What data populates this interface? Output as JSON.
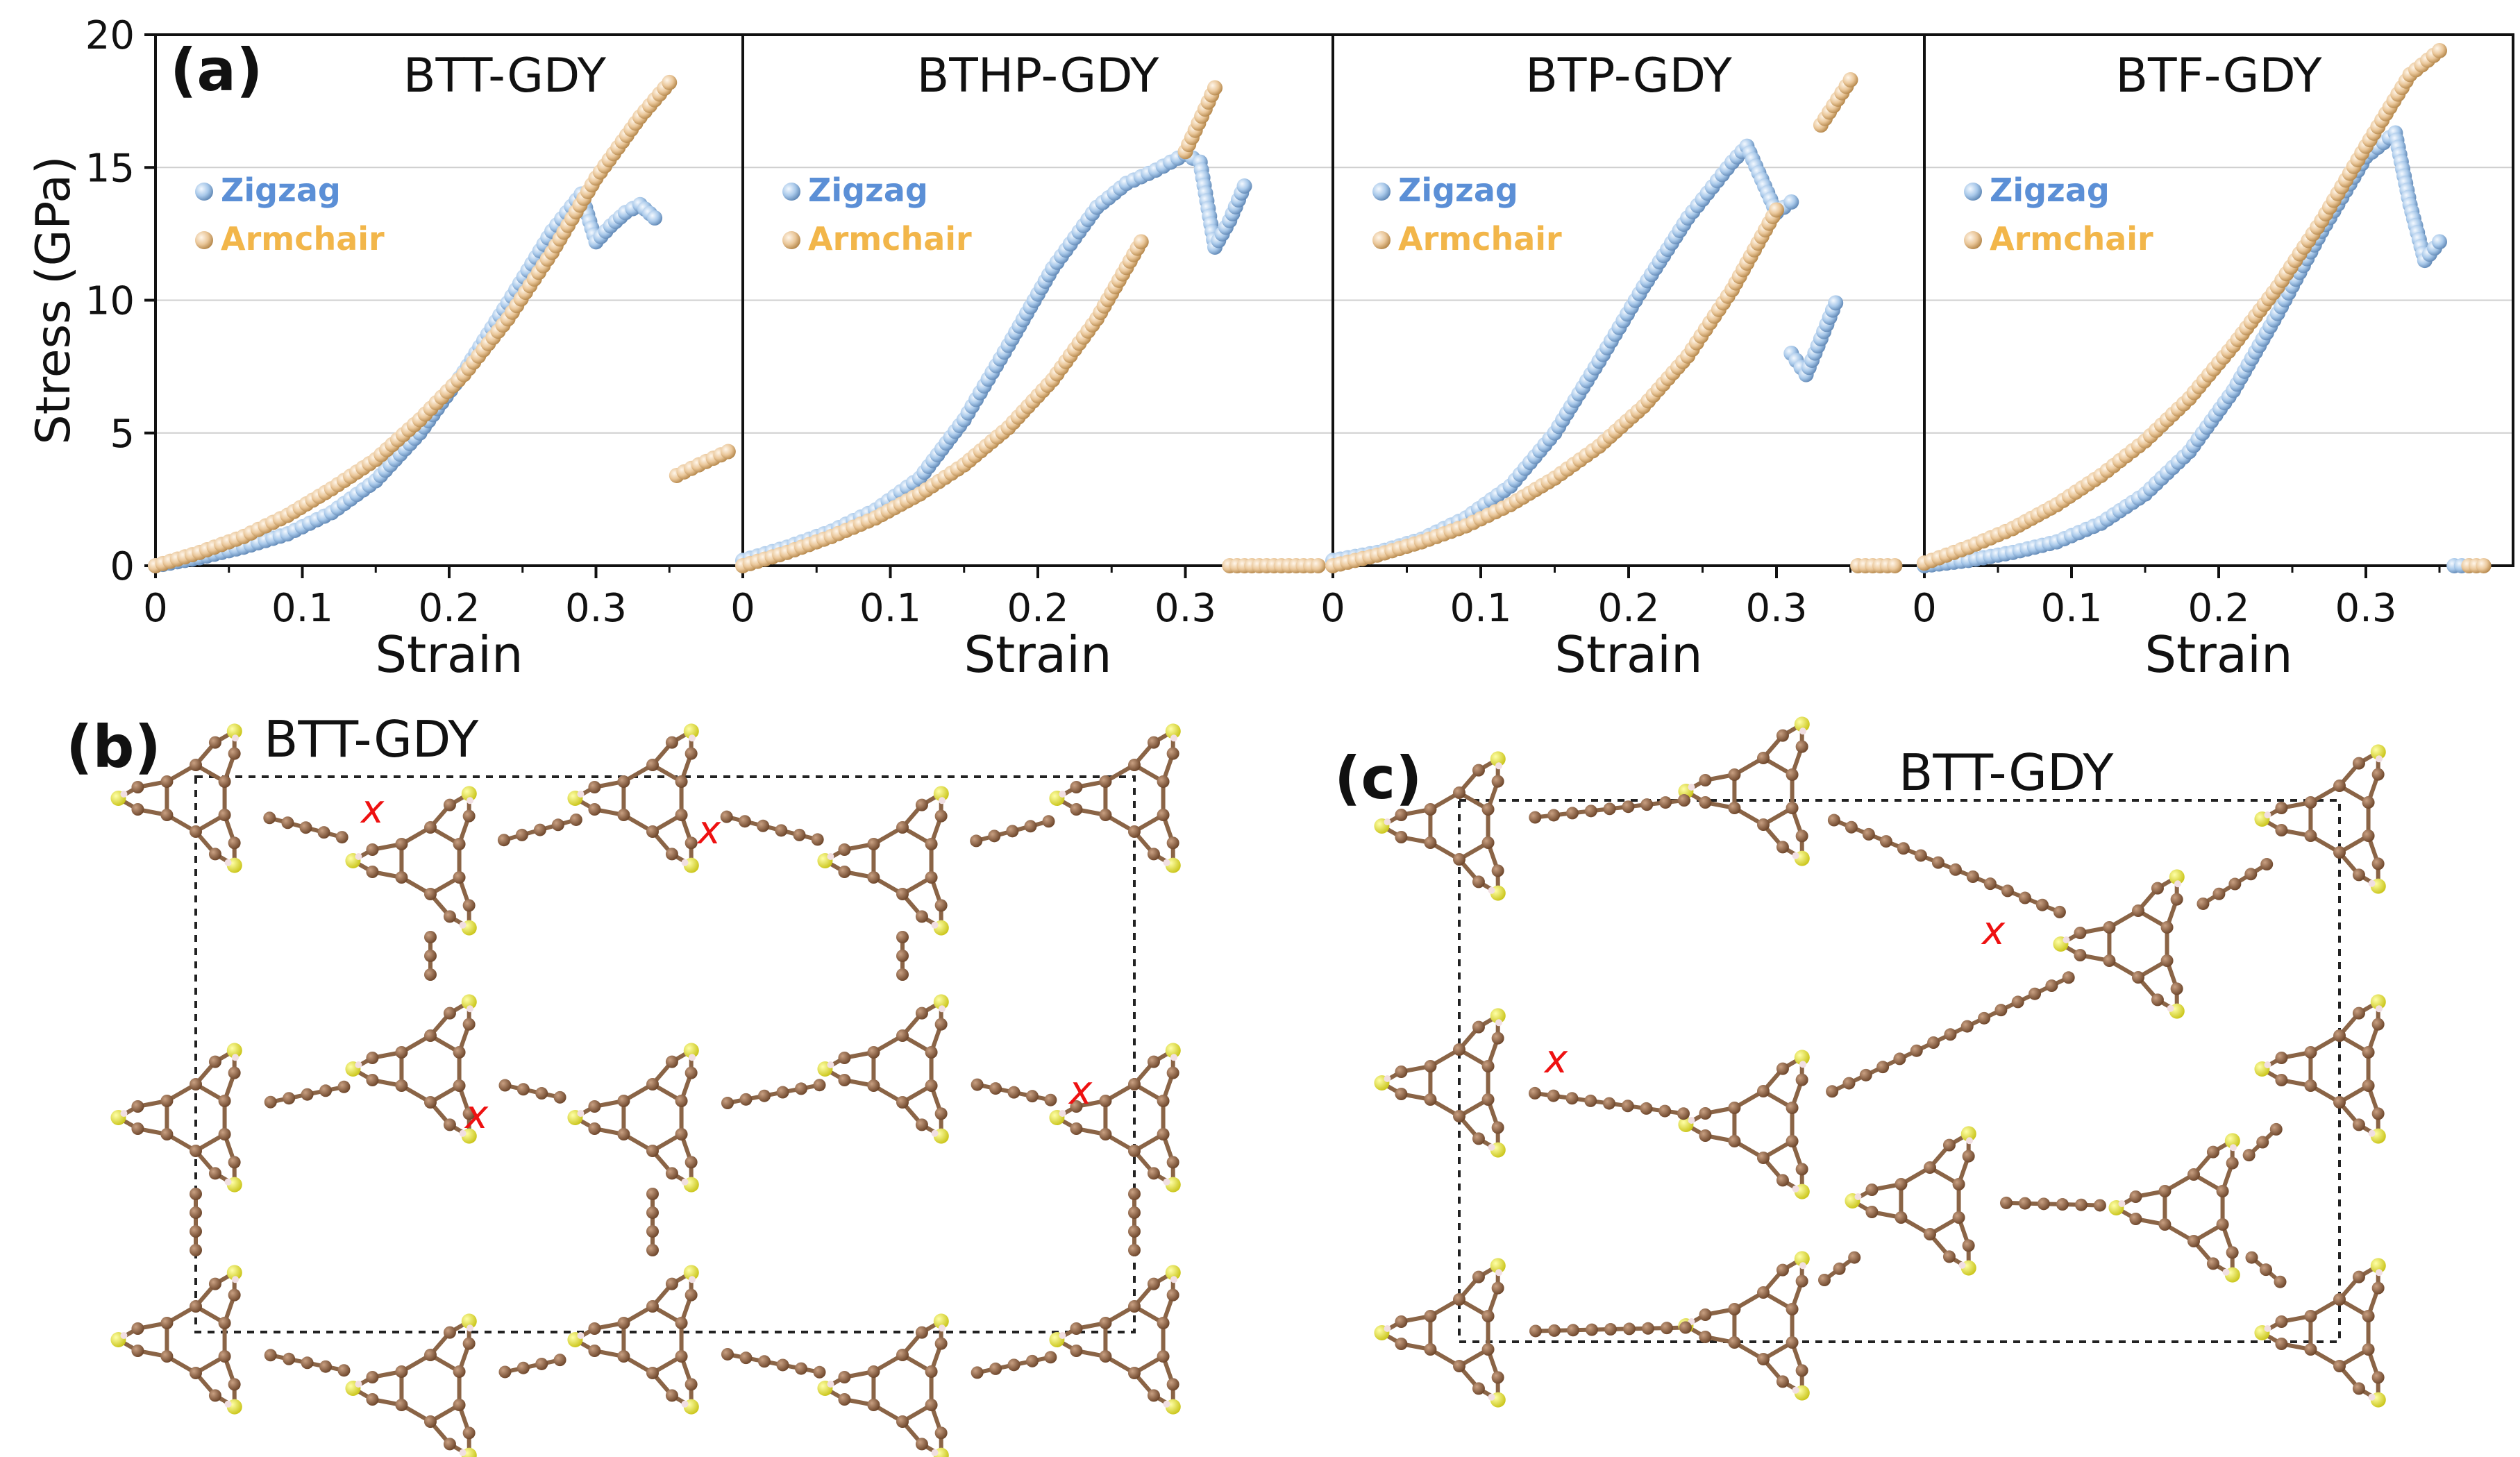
{
  "figure_labels": {
    "a": "(a)",
    "b": "(b)",
    "c": "(c)"
  },
  "structure_titles": {
    "b": "BTT-GDY",
    "c": "BTT-GDY"
  },
  "break_marker": "x",
  "colors": {
    "zigzag": "#9cc1e6",
    "armchair": "#e8c08f",
    "zigzag_label": "#5b8fd6",
    "armchair_label": "#f2b64a",
    "carbon": "#7a5234",
    "sulfur": "#e3e12c",
    "hydrogen": "#f1dfe2",
    "marker": "#ee1111"
  },
  "chart_data": [
    {
      "type": "scatter",
      "title": "BTT-GDY",
      "xlabel": "Strain",
      "ylabel": "Stress (GPa)",
      "xlim": [
        0,
        0.4
      ],
      "ylim": [
        0,
        20
      ],
      "xticks": [
        "0",
        "0.1",
        "0.2",
        "0.3"
      ],
      "yticks": [
        "0",
        "5",
        "10",
        "15",
        "20"
      ],
      "legend": [
        "Zigzag",
        "Armchair"
      ],
      "series": [
        {
          "name": "Zigzag",
          "x": [
            0,
            0.03,
            0.06,
            0.09,
            0.12,
            0.15,
            0.18,
            0.21,
            0.24,
            0.27,
            0.29,
            0.3,
            0.31,
            0.32,
            0.33,
            0.34
          ],
          "y": [
            0,
            0.3,
            0.7,
            1.2,
            2.0,
            3.2,
            5.0,
            7.3,
            9.9,
            12.6,
            14.0,
            12.2,
            12.8,
            13.3,
            13.6,
            13.1
          ]
        },
        {
          "name": "Armchair",
          "x": [
            0,
            0.03,
            0.06,
            0.09,
            0.12,
            0.15,
            0.18,
            0.21,
            0.24,
            0.27,
            0.3,
            0.33,
            0.35,
            0.355,
            0.37,
            0.39
          ],
          "y": [
            0,
            0.5,
            1.1,
            1.9,
            2.9,
            4.0,
            5.5,
            7.2,
            9.3,
            11.8,
            14.6,
            16.9,
            18.2,
            3.4,
            3.8,
            4.3
          ]
        }
      ]
    },
    {
      "type": "scatter",
      "title": "BTHP-GDY",
      "xlabel": "Strain",
      "xlim": [
        0,
        0.4
      ],
      "ylim": [
        0,
        20
      ],
      "xticks": [
        "0",
        "0.1",
        "0.2",
        "0.3"
      ],
      "legend": [
        "Zigzag",
        "Armchair"
      ],
      "series": [
        {
          "name": "Zigzag",
          "x": [
            0,
            0.03,
            0.06,
            0.09,
            0.12,
            0.15,
            0.18,
            0.21,
            0.24,
            0.26,
            0.28,
            0.3,
            0.31,
            0.32,
            0.33,
            0.34
          ],
          "y": [
            0.2,
            0.7,
            1.3,
            2.1,
            3.3,
            5.5,
            8.3,
            11.2,
            13.5,
            14.4,
            14.9,
            15.5,
            15.2,
            12.0,
            13.0,
            14.3
          ]
        },
        {
          "name": "Armchair",
          "x": [
            0,
            0.03,
            0.06,
            0.09,
            0.12,
            0.15,
            0.18,
            0.21,
            0.24,
            0.27,
            0.3,
            0.32,
            0.33,
            0.36,
            0.39
          ],
          "y": [
            0,
            0.5,
            1.1,
            1.8,
            2.7,
            3.8,
            5.2,
            7.0,
            9.3,
            12.2,
            15.6,
            18.0,
            0,
            0,
            0
          ]
        }
      ]
    },
    {
      "type": "scatter",
      "title": "BTP-GDY",
      "xlabel": "Strain",
      "xlim": [
        0,
        0.4
      ],
      "ylim": [
        0,
        20
      ],
      "xticks": [
        "0",
        "0.1",
        "0.2",
        "0.3"
      ],
      "legend": [
        "Zigzag",
        "Armchair"
      ],
      "series": [
        {
          "name": "Zigzag",
          "x": [
            0,
            0.03,
            0.06,
            0.09,
            0.12,
            0.15,
            0.18,
            0.21,
            0.24,
            0.27,
            0.28,
            0.3,
            0.31,
            0.31,
            0.32,
            0.34
          ],
          "y": [
            0.2,
            0.5,
            1.0,
            1.8,
            3.0,
            5.0,
            7.7,
            10.5,
            13.1,
            15.2,
            15.8,
            13.3,
            13.7,
            8.0,
            7.2,
            9.9
          ]
        },
        {
          "name": "Armchair",
          "x": [
            0,
            0.03,
            0.06,
            0.09,
            0.12,
            0.15,
            0.18,
            0.21,
            0.24,
            0.27,
            0.3,
            0.33,
            0.35,
            0.355,
            0.38
          ],
          "y": [
            0,
            0.4,
            0.9,
            1.5,
            2.3,
            3.3,
            4.5,
            6.0,
            7.9,
            10.4,
            13.4,
            16.6,
            18.3,
            0,
            0
          ]
        }
      ]
    },
    {
      "type": "scatter",
      "title": "BTF-GDY",
      "xlabel": "Strain",
      "xlim": [
        0,
        0.4
      ],
      "ylim": [
        0,
        20
      ],
      "xticks": [
        "0",
        "0.1",
        "0.2",
        "0.3"
      ],
      "legend": [
        "Zigzag",
        "Armchair"
      ],
      "series": [
        {
          "name": "Zigzag",
          "x": [
            0,
            0.03,
            0.06,
            0.09,
            0.12,
            0.15,
            0.18,
            0.21,
            0.24,
            0.27,
            0.3,
            0.32,
            0.33,
            0.34,
            0.35,
            0.36,
            0.37
          ],
          "y": [
            0,
            0.2,
            0.5,
            0.9,
            1.6,
            2.7,
            4.3,
            6.6,
            9.5,
            12.6,
            15.4,
            16.3,
            13.6,
            11.5,
            12.2,
            0,
            0
          ]
        },
        {
          "name": "Armchair",
          "x": [
            0,
            0.03,
            0.06,
            0.09,
            0.12,
            0.15,
            0.18,
            0.21,
            0.24,
            0.27,
            0.3,
            0.33,
            0.35,
            0.37,
            0.38
          ],
          "y": [
            0.1,
            0.7,
            1.4,
            2.3,
            3.4,
            4.7,
            6.3,
            8.3,
            10.5,
            13.0,
            15.8,
            18.5,
            19.4,
            0,
            0
          ]
        }
      ]
    }
  ]
}
